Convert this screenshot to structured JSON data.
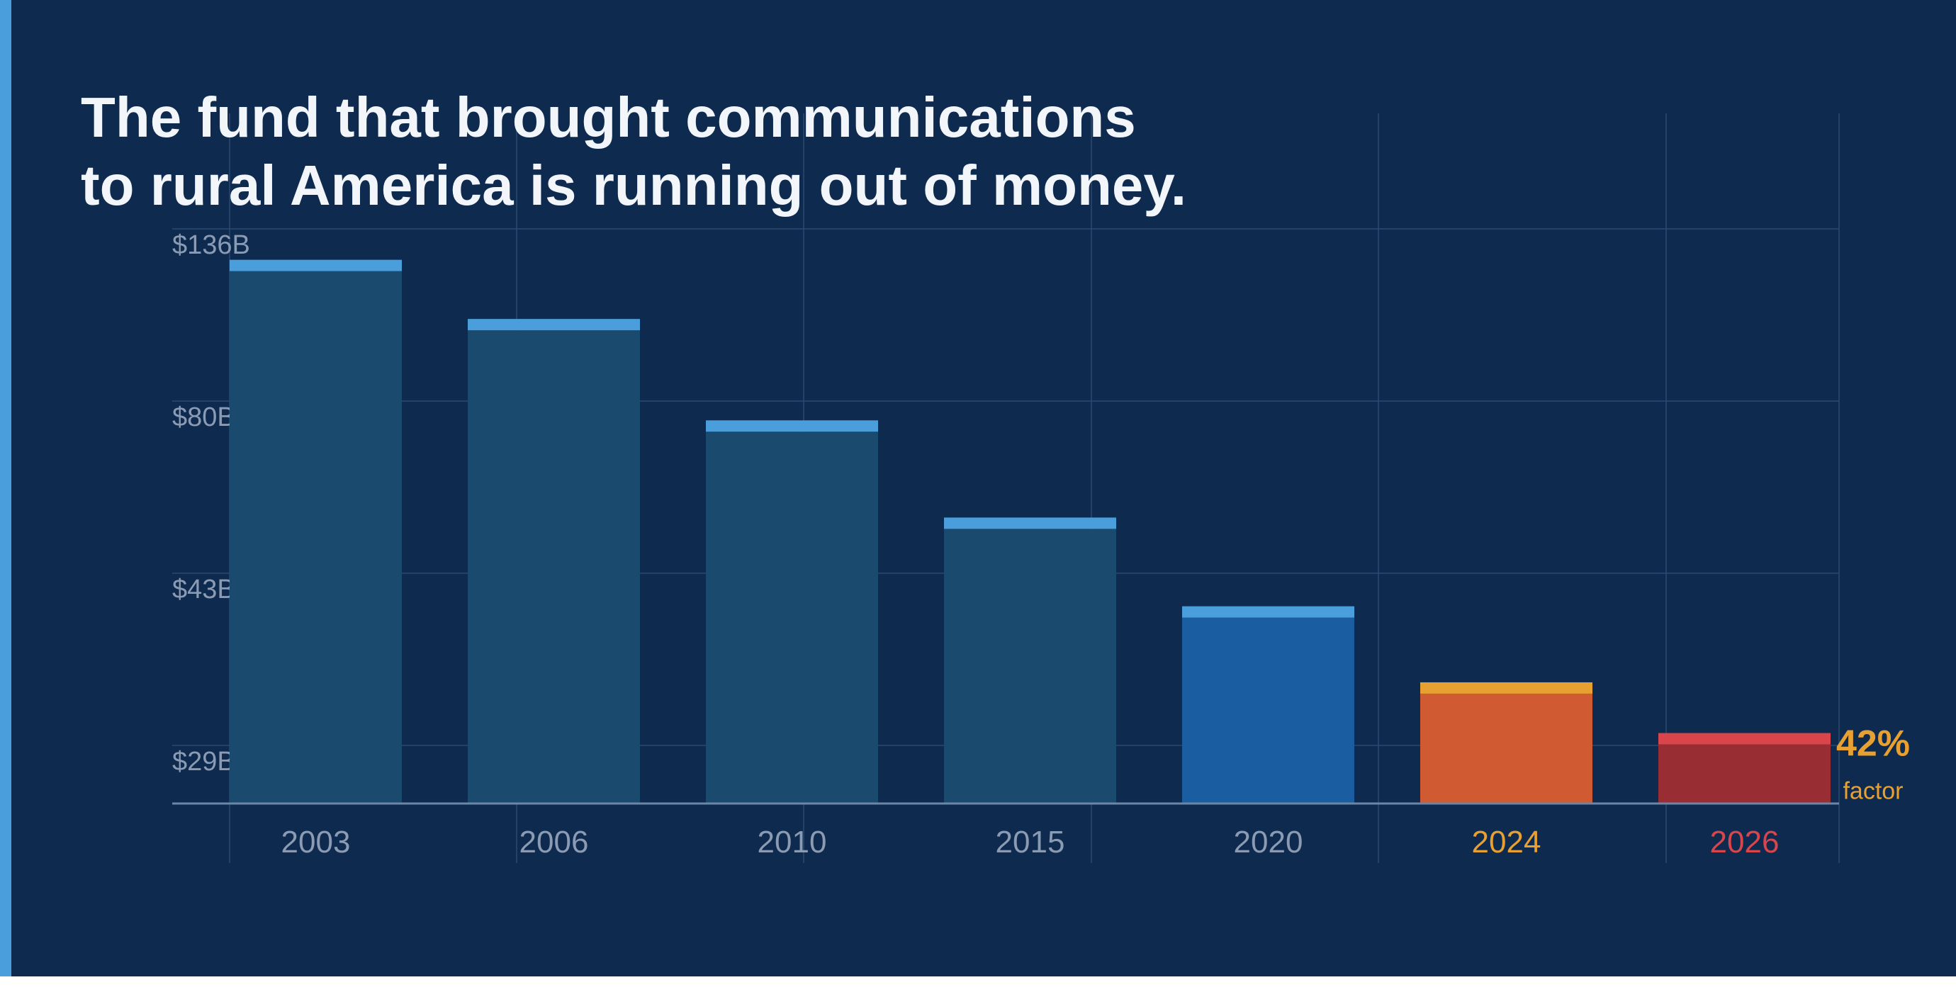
{
  "headline": {
    "line1": "The fund that brought communications",
    "line2": "to rural America is running out of money."
  },
  "colors": {
    "background": "#0e2a4f",
    "accent_stripe": "#4a9edb",
    "historic_bar": "#1a4a6e",
    "current_bar": "#1a5da0",
    "highlight_orange": "#e8a030",
    "highlight_red": "#d9454a"
  },
  "chart_data": {
    "type": "bar",
    "title": "The fund that brought communications to rural America is running out of money.",
    "xlabel": "",
    "ylabel": "",
    "categories": [
      "2003",
      "2006",
      "2010",
      "2015",
      "2020",
      "2024",
      "2026"
    ],
    "values": [
      126,
      112,
      88,
      65,
      44,
      26,
      14
    ],
    "ylim": [
      0,
      136
    ],
    "ytick_labels": [
      "$136B",
      "$80B",
      "$43B",
      "$29B"
    ],
    "grid": true,
    "bar_styles": [
      {
        "fill": "#1a4a6e",
        "cap": "#4a9edb",
        "label_color": "#8a9bb3"
      },
      {
        "fill": "#1a4a6e",
        "cap": "#4a9edb",
        "label_color": "#8a9bb3"
      },
      {
        "fill": "#1a4a6e",
        "cap": "#4a9edb",
        "label_color": "#8a9bb3"
      },
      {
        "fill": "#1a4a6e",
        "cap": "#4a9edb",
        "label_color": "#8a9bb3"
      },
      {
        "fill": "#1a5da0",
        "cap": "#4a9edb",
        "label_color": "#8a9bb3"
      },
      {
        "fill": "#d05a32",
        "cap": "#e8a030",
        "label_color": "#e8a030"
      },
      {
        "fill": "#982e33",
        "cap": "#d9454a",
        "label_color": "#d9454a"
      }
    ],
    "annotation": {
      "value": "42%",
      "label": "factor",
      "color": "#e8a030",
      "attached_to": "2026"
    }
  }
}
